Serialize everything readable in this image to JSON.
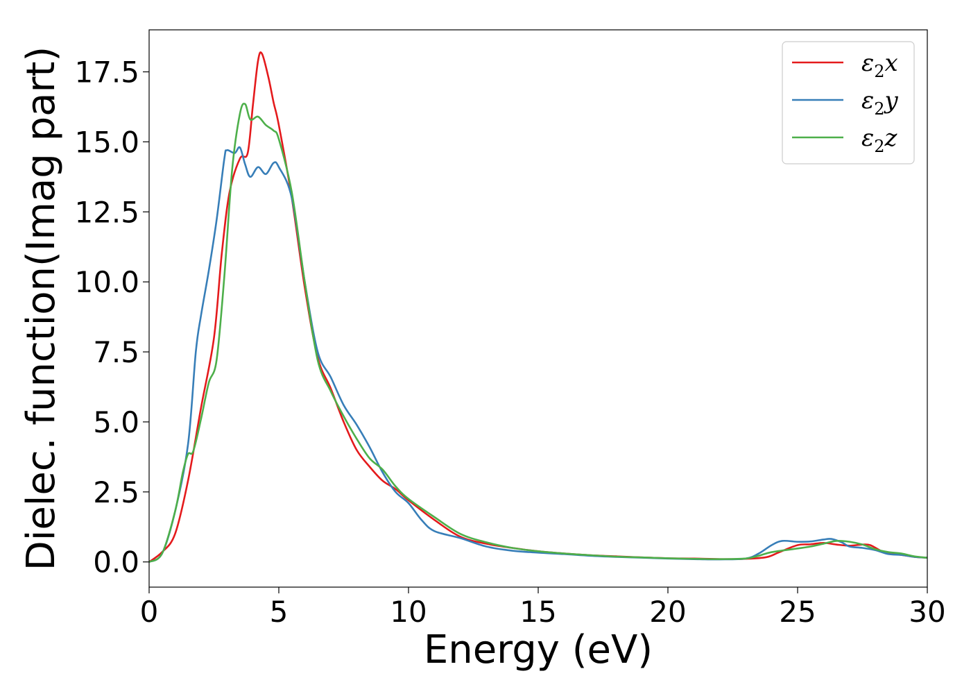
{
  "chart_data": {
    "type": "line",
    "title": "",
    "xlabel": "Energy (eV)",
    "ylabel": "Dielec. function(Imag part)",
    "xlim": [
      0,
      30
    ],
    "ylim": [
      -0.9,
      19.0
    ],
    "xticks": [
      0,
      5,
      10,
      15,
      20,
      25,
      30
    ],
    "xtick_labels": [
      "0",
      "5",
      "10",
      "15",
      "20",
      "25",
      "30"
    ],
    "yticks": [
      0.0,
      2.5,
      5.0,
      7.5,
      10.0,
      12.5,
      15.0,
      17.5
    ],
    "ytick_labels": [
      "0.0",
      "2.5",
      "5.0",
      "7.5",
      "10.0",
      "12.5",
      "15.0",
      "17.5"
    ],
    "grid": false,
    "legend_position": "top-right",
    "series": [
      {
        "name": "ε2x",
        "color": "#e41a1c",
        "points": [
          [
            0,
            0
          ],
          [
            0.5,
            0.35
          ],
          [
            1.0,
            1.0
          ],
          [
            1.5,
            2.9
          ],
          [
            2.0,
            5.5
          ],
          [
            2.5,
            8.0
          ],
          [
            2.8,
            11.0
          ],
          [
            3.1,
            13.2
          ],
          [
            3.5,
            14.4
          ],
          [
            3.8,
            14.6
          ],
          [
            4.0,
            16.3
          ],
          [
            4.2,
            17.9
          ],
          [
            4.35,
            18.15
          ],
          [
            4.6,
            17.3
          ],
          [
            4.8,
            16.4
          ],
          [
            5.0,
            15.6
          ],
          [
            5.5,
            13.0
          ],
          [
            6.0,
            9.8
          ],
          [
            6.5,
            7.3
          ],
          [
            7.0,
            6.2
          ],
          [
            7.5,
            5.0
          ],
          [
            8.0,
            4.0
          ],
          [
            8.5,
            3.4
          ],
          [
            9.0,
            2.9
          ],
          [
            9.5,
            2.6
          ],
          [
            10.0,
            2.2
          ],
          [
            11.0,
            1.5
          ],
          [
            12.0,
            0.9
          ],
          [
            13.0,
            0.65
          ],
          [
            14.0,
            0.5
          ],
          [
            15.0,
            0.38
          ],
          [
            16.0,
            0.3
          ],
          [
            17.0,
            0.24
          ],
          [
            18.0,
            0.2
          ],
          [
            19.0,
            0.16
          ],
          [
            20.0,
            0.13
          ],
          [
            21.0,
            0.12
          ],
          [
            22.0,
            0.1
          ],
          [
            23.0,
            0.11
          ],
          [
            23.8,
            0.17
          ],
          [
            24.3,
            0.35
          ],
          [
            25.0,
            0.6
          ],
          [
            25.5,
            0.63
          ],
          [
            26.0,
            0.68
          ],
          [
            26.5,
            0.62
          ],
          [
            27.0,
            0.58
          ],
          [
            27.5,
            0.62
          ],
          [
            27.8,
            0.6
          ],
          [
            28.2,
            0.4
          ],
          [
            28.5,
            0.3
          ],
          [
            29.0,
            0.25
          ],
          [
            29.5,
            0.18
          ],
          [
            30.0,
            0.15
          ]
        ]
      },
      {
        "name": "ε2y",
        "color": "#377eb8",
        "points": [
          [
            0,
            0
          ],
          [
            0.5,
            0.3
          ],
          [
            1.0,
            1.8
          ],
          [
            1.5,
            4.2
          ],
          [
            1.8,
            7.5
          ],
          [
            2.0,
            8.8
          ],
          [
            2.3,
            10.4
          ],
          [
            2.6,
            12.2
          ],
          [
            2.9,
            14.4
          ],
          [
            3.0,
            14.7
          ],
          [
            3.3,
            14.6
          ],
          [
            3.5,
            14.8
          ],
          [
            3.7,
            14.2
          ],
          [
            3.9,
            13.75
          ],
          [
            4.2,
            14.1
          ],
          [
            4.5,
            13.85
          ],
          [
            4.8,
            14.25
          ],
          [
            5.0,
            14.1
          ],
          [
            5.5,
            13.0
          ],
          [
            6.0,
            10.0
          ],
          [
            6.5,
            7.5
          ],
          [
            7.0,
            6.6
          ],
          [
            7.5,
            5.6
          ],
          [
            8.0,
            4.9
          ],
          [
            8.5,
            4.1
          ],
          [
            9.0,
            3.2
          ],
          [
            9.5,
            2.5
          ],
          [
            10.0,
            2.1
          ],
          [
            10.5,
            1.5
          ],
          [
            11.0,
            1.1
          ],
          [
            12.0,
            0.85
          ],
          [
            13.0,
            0.55
          ],
          [
            14.0,
            0.4
          ],
          [
            15.0,
            0.33
          ],
          [
            16.0,
            0.28
          ],
          [
            17.0,
            0.22
          ],
          [
            18.0,
            0.18
          ],
          [
            19.0,
            0.15
          ],
          [
            20.0,
            0.12
          ],
          [
            21.0,
            0.1
          ],
          [
            22.0,
            0.09
          ],
          [
            23.0,
            0.12
          ],
          [
            23.5,
            0.3
          ],
          [
            24.0,
            0.6
          ],
          [
            24.4,
            0.75
          ],
          [
            25.0,
            0.72
          ],
          [
            25.5,
            0.73
          ],
          [
            26.0,
            0.8
          ],
          [
            26.3,
            0.82
          ],
          [
            26.7,
            0.7
          ],
          [
            27.0,
            0.55
          ],
          [
            27.5,
            0.5
          ],
          [
            28.0,
            0.42
          ],
          [
            28.5,
            0.28
          ],
          [
            29.0,
            0.25
          ],
          [
            29.5,
            0.18
          ],
          [
            30.0,
            0.15
          ]
        ]
      },
      {
        "name": "ε2z",
        "color": "#4daf4a",
        "points": [
          [
            0,
            0
          ],
          [
            0.5,
            0.3
          ],
          [
            1.0,
            1.8
          ],
          [
            1.3,
            3.2
          ],
          [
            1.5,
            3.85
          ],
          [
            1.7,
            3.95
          ],
          [
            2.0,
            5.1
          ],
          [
            2.3,
            6.4
          ],
          [
            2.6,
            7.2
          ],
          [
            2.9,
            10.2
          ],
          [
            3.2,
            14.0
          ],
          [
            3.5,
            16.0
          ],
          [
            3.7,
            16.35
          ],
          [
            3.9,
            15.8
          ],
          [
            4.2,
            15.9
          ],
          [
            4.5,
            15.6
          ],
          [
            4.8,
            15.4
          ],
          [
            5.0,
            15.1
          ],
          [
            5.5,
            13.2
          ],
          [
            6.0,
            10.0
          ],
          [
            6.5,
            7.2
          ],
          [
            7.0,
            6.1
          ],
          [
            7.5,
            5.2
          ],
          [
            8.0,
            4.4
          ],
          [
            8.5,
            3.7
          ],
          [
            9.0,
            3.3
          ],
          [
            9.5,
            2.7
          ],
          [
            10.0,
            2.25
          ],
          [
            11.0,
            1.6
          ],
          [
            12.0,
            1.0
          ],
          [
            13.0,
            0.7
          ],
          [
            14.0,
            0.5
          ],
          [
            15.0,
            0.38
          ],
          [
            16.0,
            0.3
          ],
          [
            17.0,
            0.24
          ],
          [
            18.0,
            0.19
          ],
          [
            19.0,
            0.16
          ],
          [
            20.0,
            0.13
          ],
          [
            21.0,
            0.11
          ],
          [
            22.0,
            0.1
          ],
          [
            23.0,
            0.12
          ],
          [
            23.5,
            0.22
          ],
          [
            24.0,
            0.35
          ],
          [
            25.0,
            0.48
          ],
          [
            25.5,
            0.55
          ],
          [
            26.0,
            0.65
          ],
          [
            26.5,
            0.75
          ],
          [
            27.0,
            0.72
          ],
          [
            27.5,
            0.62
          ],
          [
            28.0,
            0.45
          ],
          [
            28.5,
            0.35
          ],
          [
            29.0,
            0.3
          ],
          [
            29.5,
            0.2
          ],
          [
            30.0,
            0.15
          ]
        ]
      }
    ]
  }
}
